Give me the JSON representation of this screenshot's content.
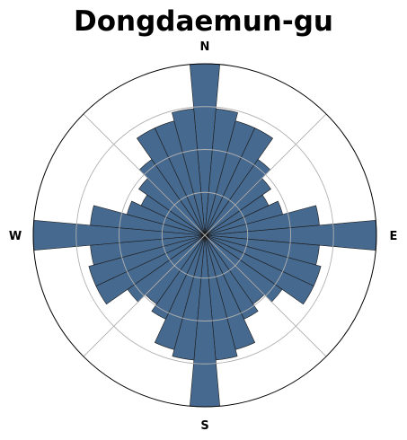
{
  "chart_data": {
    "type": "polar-bar",
    "title": "Dongdaemun-gu",
    "compass_labels": {
      "north": "N",
      "east": "E",
      "south": "S",
      "west": "W"
    },
    "num_bins": 36,
    "direction": "clockwise-from-north",
    "rmax": 1.0,
    "gridlines": [
      0.25,
      0.5,
      0.75
    ],
    "spokes_deg": [
      45,
      135,
      225,
      315
    ],
    "values": [
      1.0,
      0.74,
      0.69,
      0.69,
      0.54,
      0.47,
      0.41,
      0.47,
      0.67,
      1.0,
      0.67,
      0.7,
      0.7,
      0.55,
      0.49,
      0.54,
      0.69,
      0.73,
      1.0,
      0.73,
      0.69,
      0.54,
      0.49,
      0.55,
      0.7,
      0.7,
      0.67,
      1.0,
      0.67,
      0.47,
      0.41,
      0.47,
      0.54,
      0.69,
      0.69,
      0.74
    ],
    "bar_color": "#46698f",
    "edge_color": "#1b1b1b",
    "grid": true
  }
}
